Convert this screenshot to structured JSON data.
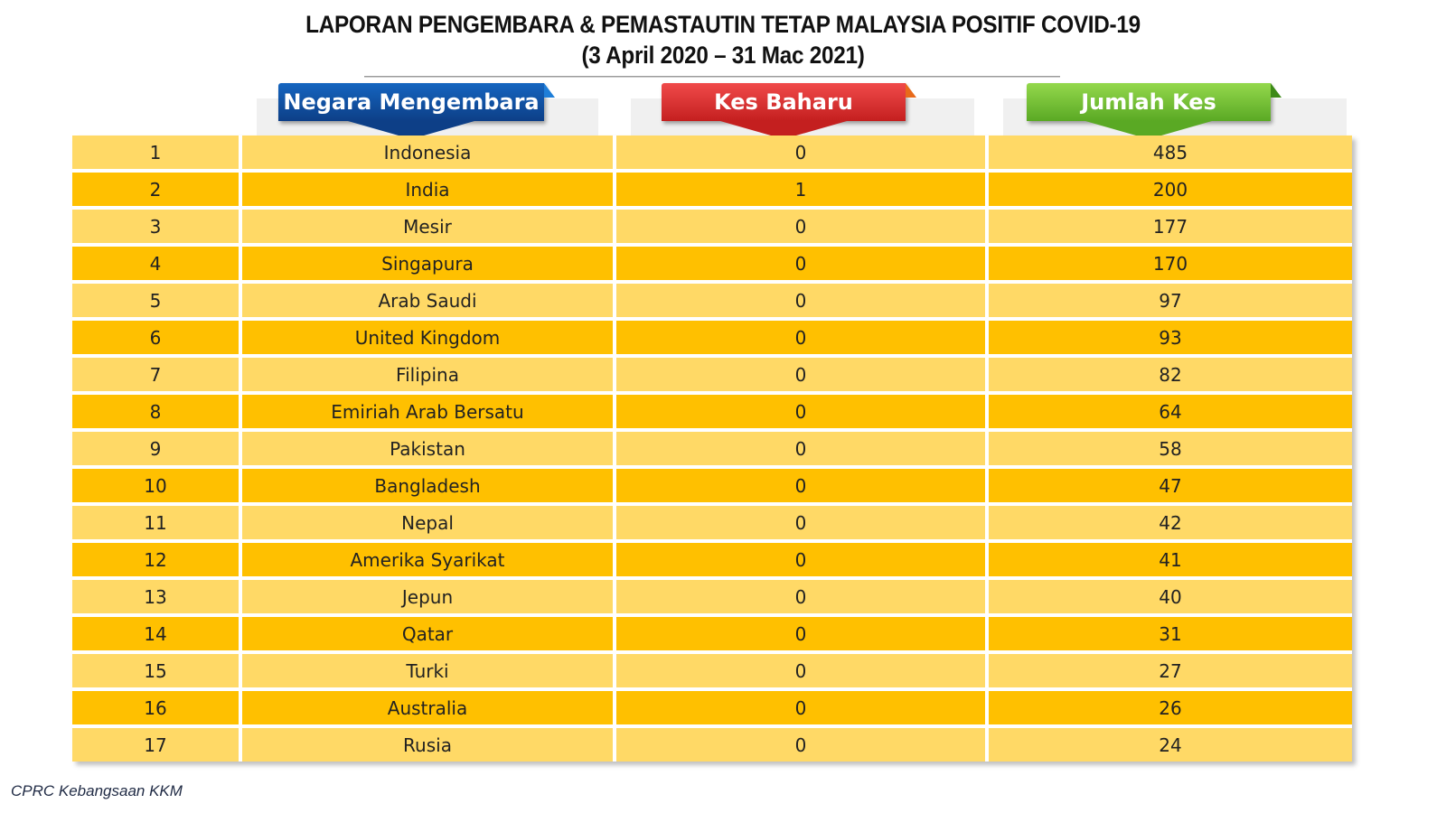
{
  "title": {
    "line1": "LAPORAN PENGEMBARA & PEMASTAUTIN TETAP MALAYSIA POSITIF COVID-19",
    "line2": "(3 April 2020 – 31 Mac 2021)"
  },
  "headers": {
    "country": "Negara Mengembara",
    "new_cases": "Kes Baharu",
    "total_cases": "Jumlah Kes"
  },
  "colors": {
    "header_country": "#0d3f87",
    "header_new": "#c41f1f",
    "header_total": "#5aa924",
    "row_light": "#ffd966",
    "row_dark": "#ffc000"
  },
  "rows": [
    {
      "no": "1",
      "country": "Indonesia",
      "new": "0",
      "total": "485"
    },
    {
      "no": "2",
      "country": "India",
      "new": "1",
      "total": "200"
    },
    {
      "no": "3",
      "country": "Mesir",
      "new": "0",
      "total": "177"
    },
    {
      "no": "4",
      "country": "Singapura",
      "new": "0",
      "total": "170"
    },
    {
      "no": "5",
      "country": "Arab Saudi",
      "new": "0",
      "total": "97"
    },
    {
      "no": "6",
      "country": "United Kingdom",
      "new": "0",
      "total": "93"
    },
    {
      "no": "7",
      "country": "Filipina",
      "new": "0",
      "total": "82"
    },
    {
      "no": "8",
      "country": "Emiriah Arab Bersatu",
      "new": "0",
      "total": "64"
    },
    {
      "no": "9",
      "country": "Pakistan",
      "new": "0",
      "total": "58"
    },
    {
      "no": "10",
      "country": "Bangladesh",
      "new": "0",
      "total": "47"
    },
    {
      "no": "11",
      "country": "Nepal",
      "new": "0",
      "total": "42"
    },
    {
      "no": "12",
      "country": "Amerika Syarikat",
      "new": "0",
      "total": "41"
    },
    {
      "no": "13",
      "country": "Jepun",
      "new": "0",
      "total": "40"
    },
    {
      "no": "14",
      "country": "Qatar",
      "new": "0",
      "total": "31"
    },
    {
      "no": "15",
      "country": "Turki",
      "new": "0",
      "total": "27"
    },
    {
      "no": "16",
      "country": "Australia",
      "new": "0",
      "total": "26"
    },
    {
      "no": "17",
      "country": "Rusia",
      "new": "0",
      "total": "24"
    }
  ],
  "footer": "CPRC Kebangsaan KKM"
}
